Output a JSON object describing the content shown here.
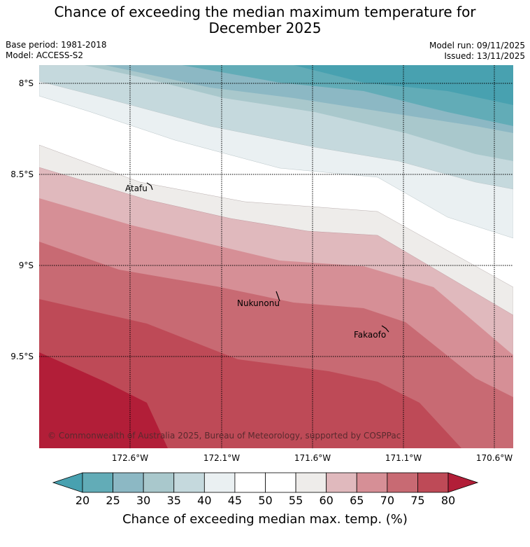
{
  "title": "Chance of exceeding the median maximum temperature for December 2025",
  "title_line1": "Chance of exceeding the median maximum temperature for",
  "title_line2": "December 2025",
  "base_period": "Base period: 1981-2018",
  "model": "Model: ACCESS-S2",
  "model_run": "Model run: 09/11/2025",
  "issued": "Issued: 13/11/2025",
  "lat_labels": [
    "8°S",
    "8.5°S",
    "9°S",
    "9.5°S"
  ],
  "lon_labels": [
    "172.6°W",
    "172.1°W",
    "171.6°W",
    "171.1°W",
    "170.6°W"
  ],
  "places": [
    "Atafu",
    "Nukunonu",
    "Fakaofo"
  ],
  "copyright": "© Commonwealth of Australia 2025, Bureau of Meteorology, supported by COSPPac",
  "colorbar": {
    "ticks": [
      "20",
      "25",
      "30",
      "35",
      "40",
      "45",
      "50",
      "55",
      "60",
      "65",
      "70",
      "75",
      "80"
    ],
    "colors": [
      "#62acb7",
      "#8cb8c4",
      "#a9c8cc",
      "#c5d9dd",
      "#eaf0f2",
      "#ffffff",
      "#ffffff",
      "#eeecea",
      "#e0b9bd",
      "#d68f96",
      "#c86a73",
      "#be4a57"
    ],
    "under_color": "#48a1b0",
    "over_color": "#b21e38",
    "label": "Chance of exceeding median max. temp. (%)"
  }
}
